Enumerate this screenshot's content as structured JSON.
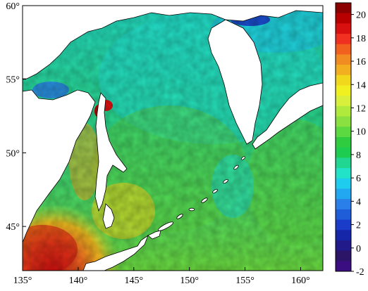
{
  "map": {
    "lon_ticks": [
      "135°",
      "140°",
      "145°",
      "150°",
      "155°",
      "160°"
    ],
    "lat_ticks": [
      "60°",
      "55°",
      "50°",
      "45°"
    ],
    "lon_range": [
      135,
      162
    ],
    "lat_range": [
      42,
      60
    ],
    "land_color": "#ffffff",
    "coastline_color": "#000000"
  },
  "colorbar": {
    "labels": [
      "20",
      "18",
      "16",
      "14",
      "12",
      "10",
      "8",
      "6",
      "4",
      "2",
      "0",
      "-2"
    ],
    "range": [
      -2,
      21
    ],
    "colors": [
      "#8b0000",
      "#b80000",
      "#d81010",
      "#f03020",
      "#f26020",
      "#f08c22",
      "#f2b020",
      "#f2d81c",
      "#f0f020",
      "#d8f03c",
      "#b0ea3c",
      "#8ae040",
      "#5cd840",
      "#30cc40",
      "#1ecd50",
      "#20d690",
      "#22e2c8",
      "#1eccee",
      "#22a8f0",
      "#2a80e8",
      "#1e5cd8",
      "#1a3cc8",
      "#1626a8",
      "#201a8a",
      "#2c1466",
      "#3a0e80"
    ]
  }
}
